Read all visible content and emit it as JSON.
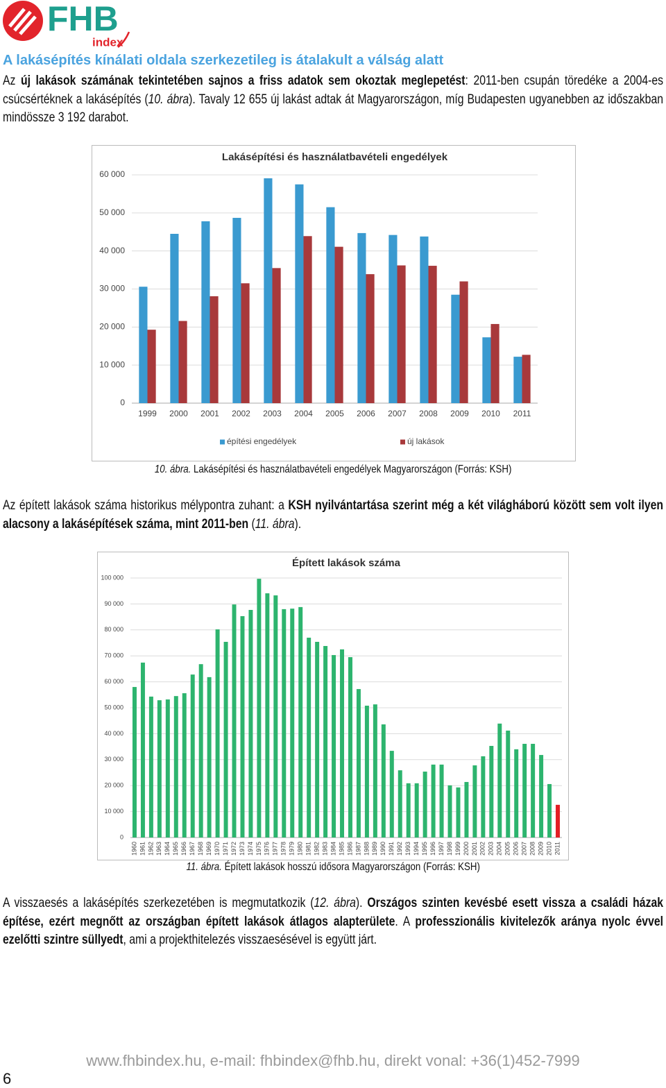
{
  "logo": {
    "name": "FHB",
    "sub": "index"
  },
  "heading": "A lakásépítés kínálati oldala szerkezetileg is átalakult a válság alatt",
  "paragraphs": [
    {
      "runs": [
        {
          "text": "Az "
        },
        {
          "text": "új lakások számának tekintetében sajnos a friss adatok sem okoztak meglepetést",
          "style": "bold"
        },
        {
          "text": ": 2011-ben csupán töredéke a 2004-es csúcsértéknek a lakásépítés ("
        },
        {
          "text": "10. ábra",
          "style": "italic"
        },
        {
          "text": "). Tavaly 12 655 új lakást adtak át Magyarországon, míg Budapesten ugyanebben az időszakban mindössze 3 192 darabot."
        }
      ]
    },
    {
      "runs": [
        {
          "text": "Az épített lakások száma historikus mélypontra zuhant: a "
        },
        {
          "text": "KSH nyilvántartása szerint még a két világháború között sem volt ilyen alacsony a lakásépítések száma, mint 2011-ben",
          "style": "bold"
        },
        {
          "text": " ("
        },
        {
          "text": "11. ábra",
          "style": "italic"
        },
        {
          "text": ")."
        }
      ]
    },
    {
      "runs": [
        {
          "text": "A visszaesés a lakásépítés szerkezetében is megmutatkozik ("
        },
        {
          "text": "12. ábra",
          "style": "italic"
        },
        {
          "text": "). "
        },
        {
          "text": "Országos szinten kevésbé esett vissza a családi házak építése, ezért megnőtt az országban épített lakások átlagos alapterülete",
          "style": "bold"
        },
        {
          "text": ". A "
        },
        {
          "text": "professzionális kivitelezők aránya nyolc évvel ezelőtti szintre süllyedt",
          "style": "bold"
        },
        {
          "text": ", ami a projekthitelezés visszaesésével is együtt járt."
        }
      ]
    }
  ],
  "captions": [
    {
      "runs": [
        {
          "text": "10. ábra.",
          "style": "italic"
        },
        {
          "text": " Lakásépítési és használatbavételi engedélyek Magyarországon (Forrás: KSH)"
        }
      ]
    },
    {
      "runs": [
        {
          "text": "11. ábra.",
          "style": "italic"
        },
        {
          "text": " Épített lakások hosszú idősora Magyarországon (Forrás: KSH)"
        }
      ]
    }
  ],
  "chart_data": [
    {
      "type": "bar",
      "title": "Lakásépítési és használatbavételi engedélyek",
      "categories": [
        "1999",
        "2000",
        "2001",
        "2002",
        "2003",
        "2004",
        "2005",
        "2006",
        "2007",
        "2008",
        "2009",
        "2010",
        "2011"
      ],
      "series": [
        {
          "name": "építési engedélyek",
          "color": "#3a9ad0",
          "values": [
            30600,
            44500,
            47800,
            48700,
            59100,
            57500,
            51500,
            44700,
            44200,
            43800,
            28500,
            17300,
            12200
          ]
        },
        {
          "name": "új lakások",
          "color": "#a8393b",
          "values": [
            19300,
            21600,
            28100,
            31500,
            35500,
            43900,
            41100,
            33900,
            36200,
            36100,
            32000,
            20800,
            12700
          ]
        }
      ],
      "ylim": [
        0,
        60000
      ],
      "yticks": [
        0,
        {
          "value": 10000,
          "label": "10 000"
        },
        {
          "value": 20000,
          "label": "20 000"
        },
        {
          "value": 30000,
          "label": "30 000"
        },
        {
          "value": 40000,
          "label": "40 000"
        },
        {
          "value": 50000,
          "label": "50 000"
        },
        {
          "value": 60000,
          "label": "60 000"
        }
      ],
      "grid": true,
      "legend": "bottom"
    },
    {
      "type": "bar",
      "title": "Épített lakások száma",
      "categories": [
        "1960",
        "1961",
        "1962",
        "1963",
        "1964",
        "1965",
        "1966",
        "1967",
        "1968",
        "1969",
        "1970",
        "1971",
        "1972",
        "1973",
        "1974",
        "1975",
        "1976",
        "1977",
        "1978",
        "1979",
        "1980",
        "1981",
        "1982",
        "1983",
        "1984",
        "1985",
        "1986",
        "1987",
        "1988",
        "1989",
        "1990",
        "1991",
        "1992",
        "1993",
        "1994",
        "1995",
        "1996",
        "1997",
        "1998",
        "1999",
        "2000",
        "2001",
        "2002",
        "2003",
        "2004",
        "2005",
        "2006",
        "2007",
        "2008",
        "2009",
        "2010",
        "2011"
      ],
      "values": [
        58000,
        67400,
        54300,
        52900,
        53200,
        54500,
        55600,
        62800,
        66800,
        61800,
        80200,
        75400,
        89800,
        85300,
        87700,
        99700,
        94100,
        93300,
        88000,
        88200,
        88800,
        77000,
        75400,
        73800,
        70300,
        72500,
        69500,
        57200,
        50800,
        51300,
        43600,
        33400,
        25900,
        20900,
        20900,
        25400,
        28100,
        28100,
        20100,
        19300,
        21400,
        27800,
        31300,
        35300,
        43900,
        41200,
        34000,
        36100,
        36100,
        31800,
        20600,
        12600
      ],
      "color": "#2db46e",
      "highlight": {
        "index": 51,
        "color": "#e31e24"
      },
      "ylim": [
        0,
        100000
      ],
      "yticks": [
        0,
        {
          "value": 10000,
          "label": "10 000"
        },
        {
          "value": 20000,
          "label": "20 000"
        },
        {
          "value": 30000,
          "label": "30 000"
        },
        {
          "value": 40000,
          "label": "40 000"
        },
        {
          "value": 50000,
          "label": "50 000"
        },
        {
          "value": 60000,
          "label": "60 000"
        },
        {
          "value": 70000,
          "label": "70 000"
        },
        {
          "value": 80000,
          "label": "80 000"
        },
        {
          "value": 90000,
          "label": "90 000"
        },
        {
          "value": 100000,
          "label": "100 000"
        }
      ],
      "grid": true
    }
  ],
  "footer": "www.fhbindex.hu, e-mail: fhbindex@fhb.hu, direkt vonal: +36(1)452-7999",
  "page_number": 6
}
